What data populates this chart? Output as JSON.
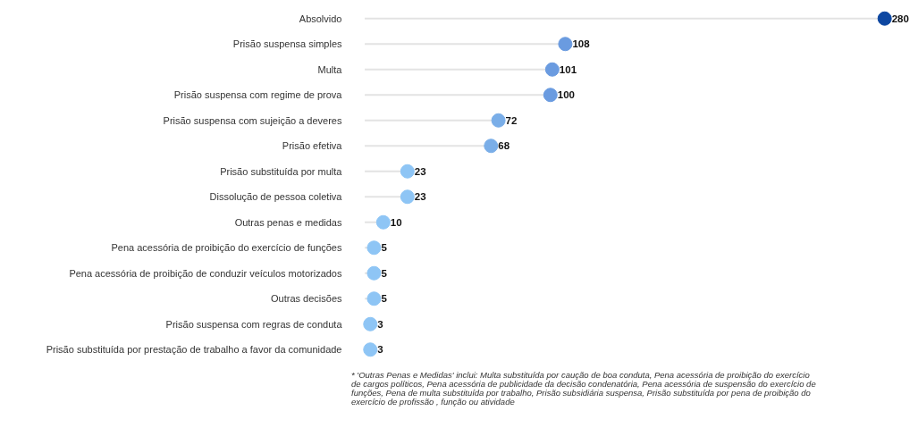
{
  "chart_data": {
    "type": "lollipop",
    "orientation": "horizontal",
    "data_labels": true,
    "categories": [
      "Absolvido",
      "Prisão suspensa simples",
      "Multa",
      "Prisão suspensa com regime de prova",
      "Prisão suspensa com sujeição a deveres",
      "Prisão efetiva",
      "Prisão substituída por multa",
      "Dissolução de pessoa coletiva",
      "Outras penas e medidas",
      "Pena acessória de proibição do exercício de funções",
      "Pena acessória de proibição de conduzir veículos motorizados",
      "Outras decisões",
      "Prisão suspensa com regras de conduta",
      "Prisão substituída por prestação de trabalho a favor da comunidade"
    ],
    "values": [
      280,
      108,
      101,
      100,
      72,
      68,
      23,
      23,
      10,
      5,
      5,
      5,
      3,
      3
    ],
    "colors": [
      "#0d47a1",
      "#6a9be0",
      "#6a9be0",
      "#6a9be0",
      "#7aaee8",
      "#7aaee8",
      "#8ec5f5",
      "#8ec5f5",
      "#8ec5f5",
      "#8ec5f5",
      "#8ec5f5",
      "#8ec5f5",
      "#8ec5f5",
      "#8ec5f5"
    ],
    "marker": "circle",
    "annotations": [
      "* 'Outras Penas e Medidas' inclui: Multa substituída por caução de boa conduta, Pena acessória de proibição do exercício de cargos políticos, Pena acessória de publicidade da decisão condenatória, Pena acessória de suspensão do exercício de funções, Pena de multa substituída por trabalho, Prisão subsidiária suspensa, Prisão substituída por pena de proibição do exercício de profissão , função ou atividade"
    ]
  }
}
